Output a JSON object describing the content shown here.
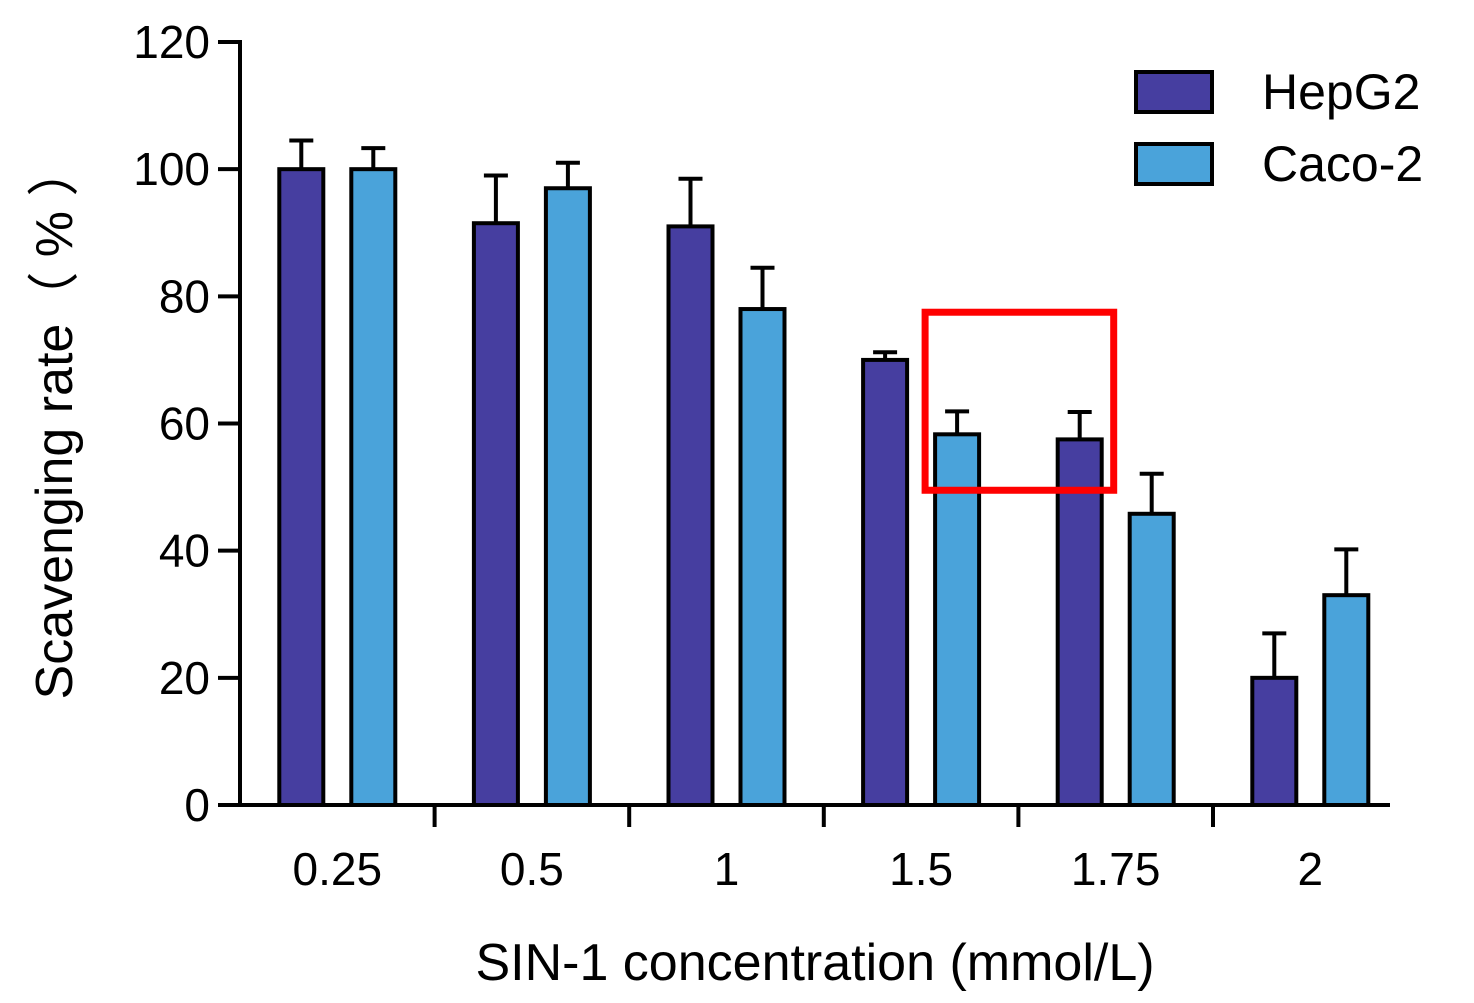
{
  "chart_data": {
    "type": "bar",
    "title": "",
    "xlabel": "SIN-1 concentration (mmol/L)",
    "ylabel": "Scavenging rate（ % ）",
    "categories": [
      "0.25",
      "0.5",
      "1",
      "1.5",
      "1.75",
      "2"
    ],
    "ylim": [
      0,
      120
    ],
    "yticks": [
      0,
      20,
      40,
      60,
      80,
      100,
      120
    ],
    "grid": false,
    "legend_position": "top-right",
    "series": [
      {
        "name": "HepG2",
        "color": "#463ea0",
        "values": [
          100,
          91.5,
          91,
          70,
          57.5,
          20
        ],
        "errors": [
          4.5,
          7.5,
          7.5,
          1.2,
          4.3,
          7
        ]
      },
      {
        "name": "Caco-2",
        "color": "#4aa3da",
        "values": [
          100,
          97,
          78,
          58.3,
          45.8,
          33
        ],
        "errors": [
          3.3,
          4,
          6.5,
          3.6,
          6.3,
          7.2
        ]
      }
    ],
    "annotation": {
      "type": "red-box",
      "color": "#ff0000",
      "y_range": [
        49.5,
        77.5
      ],
      "covers": [
        "Caco-2 at 1.5",
        "HepG2 at 1.75"
      ]
    }
  }
}
